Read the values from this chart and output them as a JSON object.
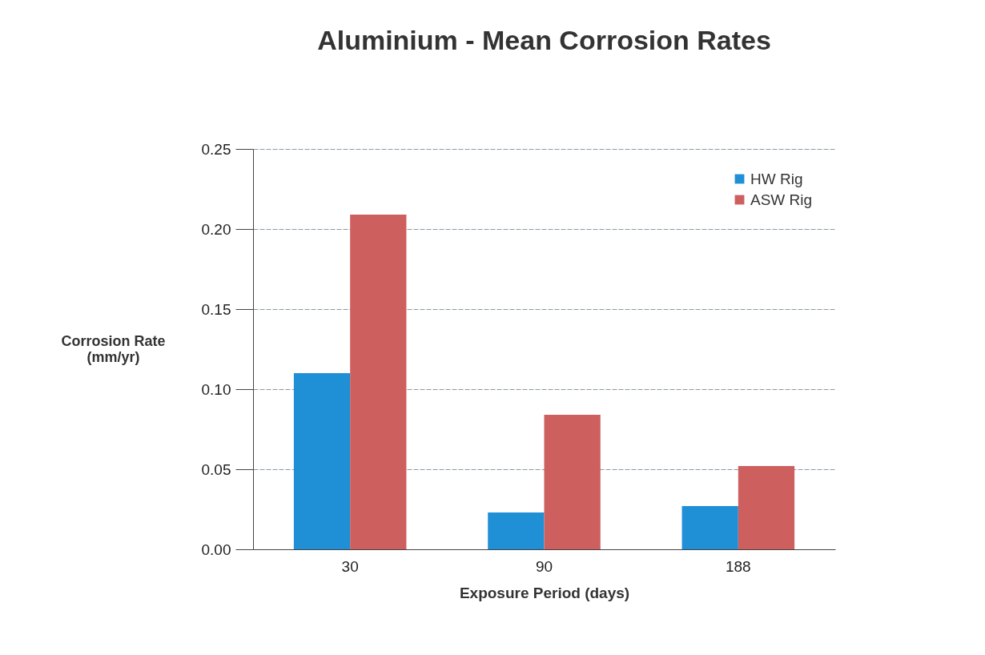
{
  "chart_data": {
    "type": "bar",
    "title": "Aluminium - Mean Corrosion Rates",
    "xlabel": "Exposure Period (days)",
    "ylabel": "Corrosion Rate (mm/yr)",
    "categories": [
      "30",
      "90",
      "188"
    ],
    "series": [
      {
        "name": "HW Rig",
        "color": "#1f8fd6",
        "values": [
          0.11,
          0.023,
          0.027
        ]
      },
      {
        "name": "ASW Rig",
        "color": "#cd5f5f",
        "values": [
          0.209,
          0.084,
          0.052
        ]
      }
    ],
    "ylim": [
      0,
      0.25
    ],
    "yticks": [
      {
        "value": 0,
        "label": "0.00"
      },
      {
        "value": 0.05,
        "label": "0.05"
      },
      {
        "value": 0.1,
        "label": "0.10"
      },
      {
        "value": 0.15,
        "label": "0.15"
      },
      {
        "value": 0.2,
        "label": "0.20"
      },
      {
        "value": 0.25,
        "label": "0.25"
      }
    ],
    "grid": "y",
    "legend": "top right"
  }
}
